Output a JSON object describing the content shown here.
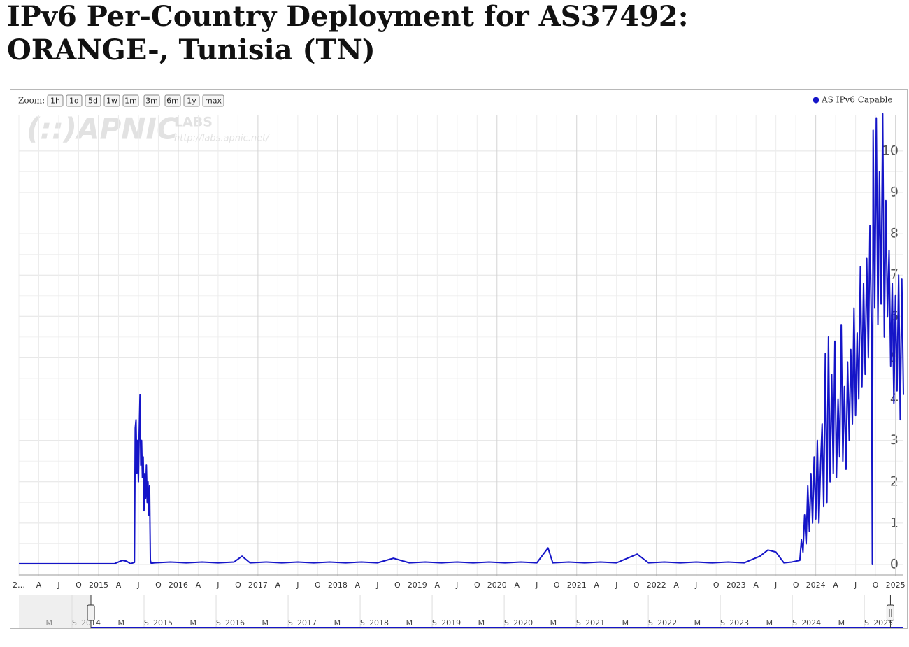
{
  "chart_data": {
    "type": "line",
    "title": "IPv6 Per-Country Deployment for AS37492: ORANGE-, Tunisia (TN)",
    "zoom_label": "Zoom:",
    "zoom_buttons": [
      "1h",
      "1d",
      "5d",
      "1w",
      "1m",
      "3m",
      "6m",
      "1y",
      "max"
    ],
    "watermark": {
      "logo": "(::)APNIC",
      "labs": "LABS",
      "url": "http://labs.apnic.net/"
    },
    "legend": "top-right",
    "grid": true,
    "xlim": [
      2014.0,
      2025.1
    ],
    "ylim": [
      0,
      10.86
    ],
    "yticks": [
      0,
      1,
      2,
      3,
      4,
      5,
      6,
      7,
      8,
      9,
      10
    ],
    "xticks": [
      {
        "value": 2014.0,
        "label": "2…"
      },
      {
        "value": 2014.25,
        "label": "A"
      },
      {
        "value": 2014.5,
        "label": "J"
      },
      {
        "value": 2014.75,
        "label": "O"
      },
      2015,
      {
        "value": 2015.25,
        "label": "A"
      },
      {
        "value": 2015.5,
        "label": "J"
      },
      {
        "value": 2015.75,
        "label": "O"
      },
      2016,
      {
        "value": 2016.25,
        "label": "A"
      },
      {
        "value": 2016.5,
        "label": "J"
      },
      {
        "value": 2016.75,
        "label": "O"
      },
      2017,
      {
        "value": 2017.25,
        "label": "A"
      },
      {
        "value": 2017.5,
        "label": "J"
      },
      {
        "value": 2017.75,
        "label": "O"
      },
      2018,
      {
        "value": 2018.25,
        "label": "A"
      },
      {
        "value": 2018.5,
        "label": "J"
      },
      {
        "value": 2018.75,
        "label": "O"
      },
      2019,
      {
        "value": 2019.25,
        "label": "A"
      },
      {
        "value": 2019.5,
        "label": "J"
      },
      {
        "value": 2019.75,
        "label": "O"
      },
      2020,
      {
        "value": 2020.25,
        "label": "A"
      },
      {
        "value": 2020.5,
        "label": "J"
      },
      {
        "value": 2020.75,
        "label": "O"
      },
      2021,
      {
        "value": 2021.25,
        "label": "A"
      },
      {
        "value": 2021.5,
        "label": "J"
      },
      {
        "value": 2021.75,
        "label": "O"
      },
      2022,
      {
        "value": 2022.25,
        "label": "A"
      },
      {
        "value": 2022.5,
        "label": "J"
      },
      {
        "value": 2022.75,
        "label": "O"
      },
      2023,
      {
        "value": 2023.25,
        "label": "A"
      },
      {
        "value": 2023.5,
        "label": "J"
      },
      {
        "value": 2023.75,
        "label": "O"
      },
      2024,
      {
        "value": 2024.25,
        "label": "A"
      },
      {
        "value": 2024.5,
        "label": "J"
      },
      {
        "value": 2024.75,
        "label": "O"
      },
      2025
    ],
    "navigator": {
      "xlim": [
        2013.0,
        2025.28
      ],
      "xticks": [
        {
          "value": 2013.42,
          "label": "M"
        },
        {
          "value": 2013.77,
          "label": "S"
        },
        2014,
        {
          "value": 2014.42,
          "label": "M"
        },
        {
          "value": 2014.77,
          "label": "S"
        },
        2015,
        {
          "value": 2015.42,
          "label": "M"
        },
        {
          "value": 2015.77,
          "label": "S"
        },
        2016,
        {
          "value": 2016.42,
          "label": "M"
        },
        {
          "value": 2016.77,
          "label": "S"
        },
        2017,
        {
          "value": 2017.42,
          "label": "M"
        },
        {
          "value": 2017.77,
          "label": "S"
        },
        2018,
        {
          "value": 2018.42,
          "label": "M"
        },
        {
          "value": 2018.77,
          "label": "S"
        },
        2019,
        {
          "value": 2019.42,
          "label": "M"
        },
        {
          "value": 2019.77,
          "label": "S"
        },
        2020,
        {
          "value": 2020.42,
          "label": "M"
        },
        {
          "value": 2020.77,
          "label": "S"
        },
        2021,
        {
          "value": 2021.42,
          "label": "M"
        },
        {
          "value": 2021.77,
          "label": "S"
        },
        2022,
        {
          "value": 2022.42,
          "label": "M"
        },
        {
          "value": 2022.77,
          "label": "S"
        },
        2023,
        {
          "value": 2023.42,
          "label": "M"
        },
        {
          "value": 2023.77,
          "label": "S"
        },
        2024,
        {
          "value": 2024.42,
          "label": "M"
        },
        {
          "value": 2024.77,
          "label": "S"
        },
        2025
      ]
    },
    "x": [
      2014.0,
      2014.2,
      2014.4,
      2014.6,
      2014.8,
      2015.0,
      2015.2,
      2015.3,
      2015.35,
      2015.4,
      2015.45,
      2015.46,
      2015.47,
      2015.48,
      2015.49,
      2015.5,
      2015.51,
      2015.52,
      2015.53,
      2015.54,
      2015.55,
      2015.56,
      2015.57,
      2015.58,
      2015.59,
      2015.6,
      2015.61,
      2015.62,
      2015.63,
      2015.64,
      2015.65,
      2015.66,
      2015.7,
      2015.9,
      2016.1,
      2016.3,
      2016.5,
      2016.7,
      2016.8,
      2016.9,
      2017.1,
      2017.3,
      2017.5,
      2017.7,
      2017.9,
      2018.1,
      2018.3,
      2018.5,
      2018.7,
      2018.9,
      2019.1,
      2019.3,
      2019.5,
      2019.7,
      2019.9,
      2020.1,
      2020.3,
      2020.5,
      2020.64,
      2020.7,
      2020.9,
      2021.1,
      2021.3,
      2021.5,
      2021.76,
      2021.9,
      2022.1,
      2022.3,
      2022.5,
      2022.7,
      2022.9,
      2023.1,
      2023.3,
      2023.4,
      2023.5,
      2023.6,
      2023.7,
      2023.8,
      2023.82,
      2023.84,
      2023.86,
      2023.88,
      2023.9,
      2023.92,
      2023.94,
      2023.96,
      2023.98,
      2024.0,
      2024.02,
      2024.04,
      2024.06,
      2024.08,
      2024.1,
      2024.12,
      2024.14,
      2024.16,
      2024.18,
      2024.2,
      2024.22,
      2024.24,
      2024.26,
      2024.28,
      2024.3,
      2024.32,
      2024.34,
      2024.36,
      2024.38,
      2024.4,
      2024.42,
      2024.44,
      2024.46,
      2024.48,
      2024.5,
      2024.52,
      2024.54,
      2024.56,
      2024.58,
      2024.6,
      2024.62,
      2024.64,
      2024.66,
      2024.68,
      2024.7,
      2024.71,
      2024.72,
      2024.74,
      2024.76,
      2024.78,
      2024.8,
      2024.82,
      2024.84,
      2024.86,
      2024.88,
      2024.9,
      2024.92,
      2024.94,
      2024.96,
      2024.98,
      2025.0,
      2025.02,
      2025.04,
      2025.06,
      2025.08,
      2025.1
    ],
    "series": [
      {
        "name": "AS IPv6 Capable",
        "color": "#1515c8",
        "values": [
          0.02,
          0.02,
          0.02,
          0.02,
          0.02,
          0.02,
          0.02,
          0.1,
          0.08,
          0.02,
          0.05,
          3.3,
          3.5,
          2.2,
          3.0,
          2.0,
          3.2,
          4.1,
          2.4,
          3.0,
          2.1,
          2.6,
          1.3,
          2.2,
          1.6,
          2.4,
          1.5,
          2.0,
          1.2,
          1.9,
          0.1,
          0.03,
          0.04,
          0.06,
          0.04,
          0.06,
          0.04,
          0.06,
          0.2,
          0.04,
          0.06,
          0.04,
          0.06,
          0.04,
          0.06,
          0.04,
          0.06,
          0.04,
          0.15,
          0.04,
          0.06,
          0.04,
          0.06,
          0.04,
          0.06,
          0.04,
          0.06,
          0.04,
          0.4,
          0.04,
          0.06,
          0.04,
          0.06,
          0.04,
          0.25,
          0.04,
          0.06,
          0.04,
          0.06,
          0.04,
          0.06,
          0.04,
          0.2,
          0.35,
          0.3,
          0.04,
          0.06,
          0.1,
          0.6,
          0.3,
          1.2,
          0.5,
          1.9,
          0.8,
          2.2,
          1.0,
          2.6,
          1.1,
          3.0,
          1.0,
          2.4,
          3.4,
          1.4,
          5.1,
          1.5,
          5.5,
          2.0,
          4.6,
          2.2,
          5.4,
          2.1,
          4.0,
          2.6,
          5.8,
          2.5,
          4.3,
          2.3,
          4.9,
          3.0,
          5.2,
          3.4,
          6.2,
          3.6,
          5.6,
          4.0,
          7.2,
          4.3,
          6.8,
          4.6,
          7.4,
          5.0,
          8.2,
          5.5,
          0,
          10.5,
          6.2,
          10.8,
          5.8,
          9.5,
          6.3,
          10.9,
          5.5,
          8.8,
          6.0,
          7.6,
          4.8,
          6.8,
          3.9,
          6.5,
          4.2,
          7.0,
          3.5,
          6.9,
          4.1
        ]
      }
    ]
  }
}
